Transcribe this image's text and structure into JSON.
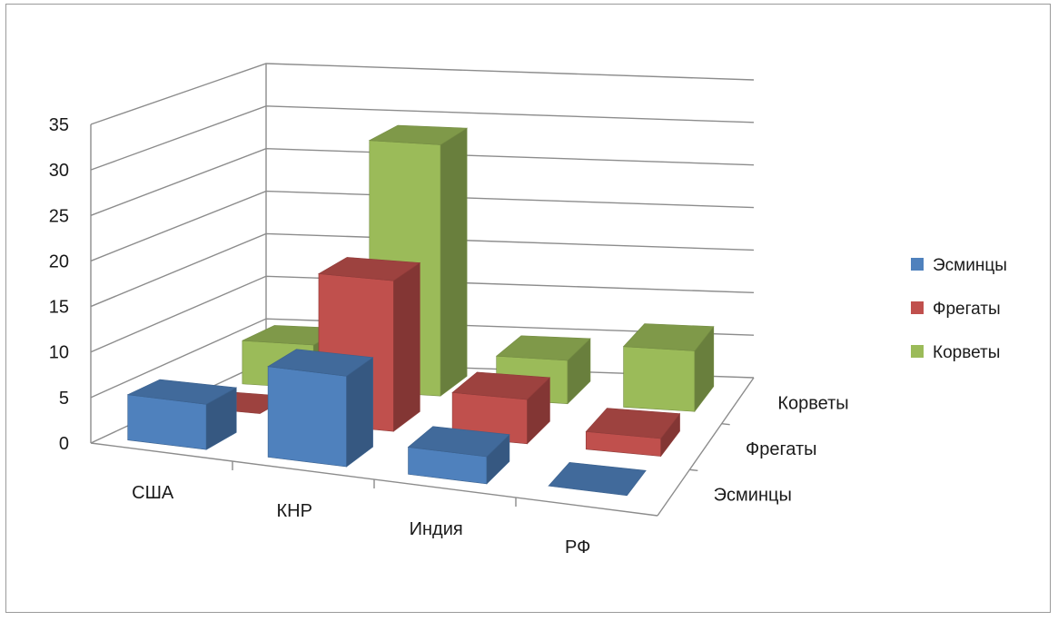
{
  "chart_data": {
    "type": "bar",
    "subtype": "3d-column",
    "title": "",
    "categories": [
      "США",
      "КНР",
      "Индия",
      "РФ"
    ],
    "series": [
      {
        "name": "Эсминцы",
        "values": [
          5,
          10,
          3,
          0
        ],
        "color": "#4f81bd"
      },
      {
        "name": "Фрегаты",
        "values": [
          0,
          17,
          5,
          2
        ],
        "color": "#c0504d"
      },
      {
        "name": "Корветы",
        "values": [
          5,
          29,
          5,
          7
        ],
        "color": "#9bbb59"
      }
    ],
    "depth_labels": [
      "Эсминцы",
      "Фрегаты",
      "Корветы"
    ],
    "y_ticks": [
      "0",
      "5",
      "10",
      "15",
      "20",
      "25",
      "30",
      "35"
    ],
    "ylim": [
      0,
      35
    ],
    "grid": true,
    "legend_position": "right"
  }
}
